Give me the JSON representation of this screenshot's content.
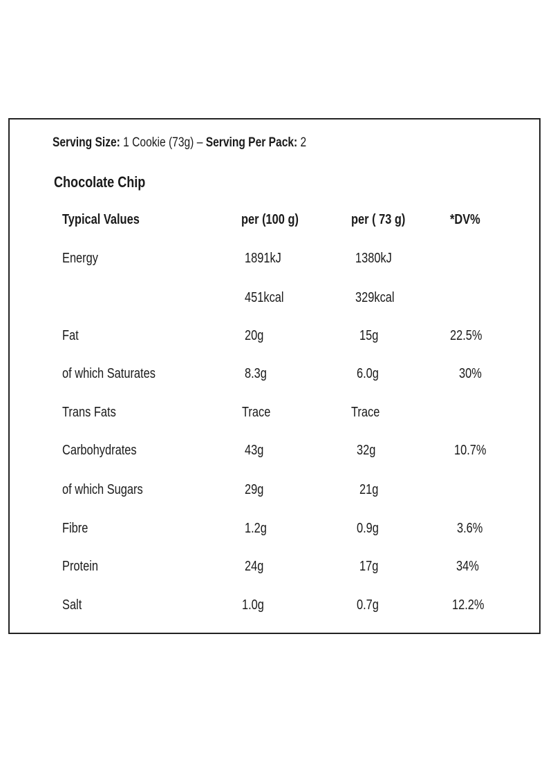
{
  "serving": {
    "size_label": "Serving Size:",
    "size_value": "1 Cookie (73g)",
    "separator": "–",
    "pack_label": "Serving Per Pack:",
    "pack_value": "2"
  },
  "product_title": "Chocolate Chip",
  "table": {
    "headers": [
      "Typical Values",
      "per (100 g)",
      "per ( 73 g)",
      "*DV%"
    ],
    "rows": [
      [
        "Energy",
        "1891kJ",
        "1380kJ",
        ""
      ],
      [
        "",
        "451kcal",
        "329kcal",
        ""
      ],
      [
        "Fat",
        "20g",
        "15g",
        "22.5%"
      ],
      [
        "of which Saturates",
        "8.3g",
        "6.0g",
        "30%"
      ],
      [
        "Trans Fats",
        "Trace",
        "Trace",
        ""
      ],
      [
        "Carbohydrates",
        "43g",
        "32g",
        "10.7%"
      ],
      [
        "of which Sugars",
        "29g",
        "21g",
        ""
      ],
      [
        "Fibre",
        "1.2g",
        "0.9g",
        "3.6%"
      ],
      [
        "Protein",
        "24g",
        "17g",
        "34%"
      ],
      [
        "Salt",
        "1.0g",
        "0.7g",
        "12.2%"
      ]
    ]
  }
}
